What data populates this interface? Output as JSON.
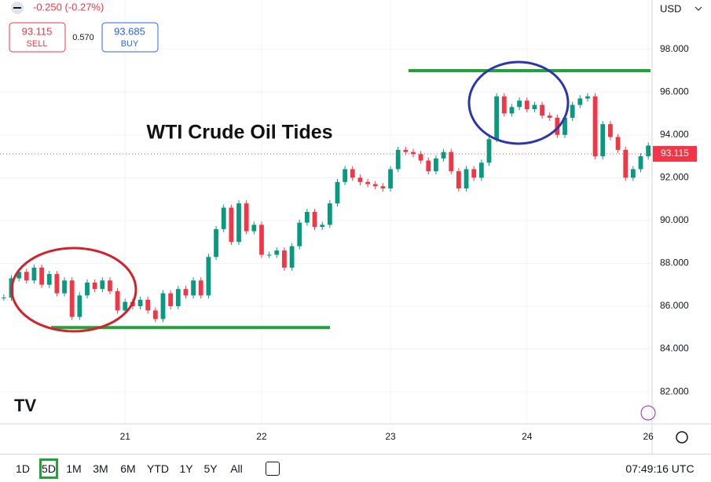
{
  "header": {
    "change": "-0.250 (-0.27%)",
    "sell_price": "93.115",
    "sell_label": "SELL",
    "spread": "0.570",
    "buy_price": "93.685",
    "buy_label": "BUY",
    "currency": "USD"
  },
  "toolbar": {
    "ranges": [
      "1D",
      "5D",
      "1M",
      "3M",
      "6M",
      "YTD",
      "1Y",
      "5Y",
      "All"
    ],
    "time": "07:49:16 UTC"
  },
  "chart_data": {
    "type": "candlestick",
    "title": "WTI Crude Oil Tides",
    "categories": [
      null,
      null,
      null,
      null,
      null,
      null,
      null,
      null,
      null,
      null,
      null,
      null,
      null,
      null,
      null,
      null,
      "21",
      null,
      null,
      null,
      null,
      null,
      null,
      null,
      null,
      null,
      null,
      null,
      null,
      null,
      null,
      null,
      null,
      null,
      "22",
      null,
      null,
      null,
      null,
      null,
      null,
      null,
      null,
      null,
      null,
      null,
      null,
      null,
      null,
      null,
      null,
      "23",
      null,
      null,
      null,
      null,
      null,
      null,
      null,
      null,
      null,
      null,
      null,
      null,
      null,
      null,
      null,
      null,
      null,
      "24",
      null,
      null,
      null,
      null,
      null,
      null,
      null,
      null,
      null,
      null,
      null,
      null,
      null,
      null,
      null,
      "26"
    ],
    "series": [
      {
        "name": "WTI",
        "up_color": "#089981",
        "down_color": "#f23645",
        "values": [
          86.4,
          87.3,
          87.6,
          87.2,
          87.8,
          87.0,
          87.5,
          86.6,
          87.2,
          85.5,
          86.5,
          87.1,
          86.8,
          87.2,
          86.7,
          85.8,
          86.2,
          86.0,
          86.3,
          85.8,
          85.4,
          86.6,
          86.0,
          86.8,
          86.5,
          87.2,
          86.5,
          88.3,
          89.6,
          90.6,
          89.0,
          90.8,
          89.5,
          89.8,
          88.4,
          88.4,
          88.6,
          87.8,
          88.8,
          89.9,
          90.4,
          89.7,
          89.8,
          90.8,
          91.8,
          92.4,
          92.0,
          91.8,
          91.7,
          91.6,
          91.5,
          92.4,
          93.3,
          93.2,
          93.1,
          92.8,
          92.3,
          92.9,
          93.2,
          92.3,
          91.5,
          92.4,
          92.0,
          92.7,
          93.8,
          95.8,
          95.0,
          95.3,
          95.6,
          95.2,
          95.4,
          94.9,
          94.8,
          94.0,
          94.8,
          95.4,
          95.7,
          95.8,
          93.0,
          94.5,
          93.9,
          93.3,
          92.0,
          92.4,
          93.0,
          93.5
        ]
      }
    ],
    "last_price": 93.115,
    "last_price_color": "#f23645",
    "levels": [
      {
        "value": 85,
        "color": "#22a33a"
      },
      {
        "value": 97,
        "color": "#22a33a"
      }
    ],
    "ylim": [
      80.5,
      100.3
    ],
    "yticks": [
      {
        "value": 82,
        "label": "82.000"
      },
      {
        "value": 84,
        "label": "84.000"
      },
      {
        "value": 86,
        "label": "86.000"
      },
      {
        "value": 88,
        "label": "88.000"
      },
      {
        "value": 90,
        "label": "90.000"
      },
      {
        "value": 92,
        "label": "92.000"
      },
      {
        "value": 94,
        "label": "94.000"
      },
      {
        "value": 96,
        "label": "96.000"
      },
      {
        "value": 98,
        "label": "98.000"
      }
    ],
    "grid": true
  }
}
